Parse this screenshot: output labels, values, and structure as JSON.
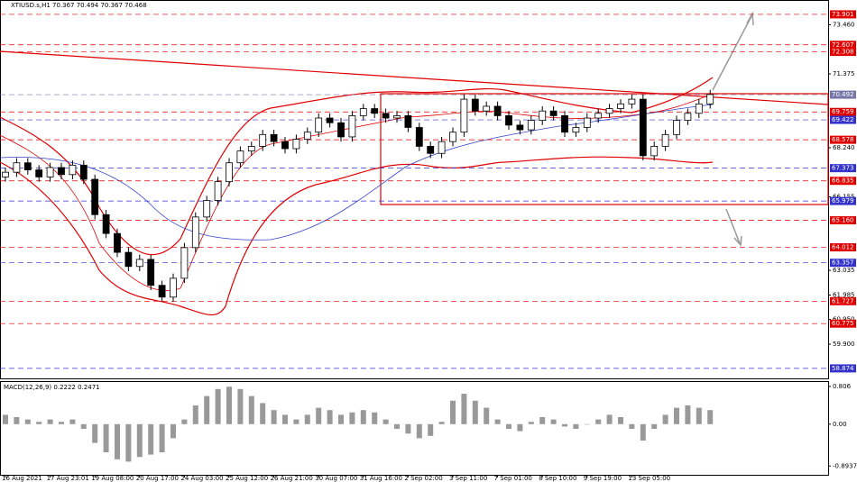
{
  "chart_data": {
    "type": "candlestick",
    "title": "XTIUSD.s,H1  70.367 70.494 70.367 70.468",
    "categories": [
      "16 Aug 2021",
      null,
      null,
      null,
      "17 Aug 23:01",
      null,
      null,
      null,
      "19 Aug 08:00",
      null,
      null,
      null,
      "20 Aug 17:00",
      null,
      null,
      null,
      "24 Aug 03:00",
      null,
      null,
      null,
      "25 Aug 12:00",
      null,
      null,
      null,
      "26 Aug 21:00",
      null,
      null,
      null,
      "30 Aug 07:00",
      null,
      null,
      null,
      "31 Aug 16:00",
      null,
      null,
      null,
      "2 Sep 02:00",
      null,
      null,
      null,
      "3 Sep 11:00",
      null,
      null,
      null,
      "7 Sep 01:00",
      null,
      null,
      null,
      "8 Sep 10:00",
      null,
      null,
      null,
      "9 Sep 19:00",
      null,
      null,
      null,
      "13 Sep 05:00",
      null,
      null,
      null,
      null,
      null,
      null,
      null
    ],
    "open": [
      67.0,
      67.2,
      67.6,
      67.3,
      67.0,
      67.4,
      67.1,
      67.5,
      66.9,
      65.4,
      64.6,
      63.8,
      63.2,
      63.5,
      62.4,
      61.9,
      62.7,
      64.0,
      65.3,
      66.0,
      66.8,
      67.6,
      68.1,
      68.3,
      68.8,
      68.5,
      68.2,
      68.6,
      68.9,
      69.5,
      69.3,
      68.7,
      69.6,
      69.9,
      69.7,
      69.5,
      69.6,
      69.1,
      68.3,
      68.0,
      68.5,
      68.9,
      70.3,
      69.8,
      70.0,
      69.6,
      69.2,
      69.0,
      69.4,
      69.8,
      69.6,
      68.9,
      69.1,
      69.5,
      69.7,
      69.9,
      70.1,
      70.3,
      67.9,
      68.3,
      68.8,
      69.4,
      69.7,
      70.1
    ],
    "high": [
      67.4,
      67.8,
      67.8,
      67.5,
      67.6,
      67.6,
      67.7,
      67.7,
      67.1,
      65.6,
      64.8,
      64.0,
      63.7,
      63.7,
      62.6,
      62.9,
      64.2,
      65.5,
      66.2,
      67.0,
      67.8,
      68.3,
      68.5,
      69.0,
      69.0,
      68.7,
      68.8,
      69.1,
      69.7,
      69.7,
      69.5,
      69.8,
      70.1,
      70.1,
      69.9,
      69.8,
      69.8,
      69.3,
      68.5,
      68.7,
      69.1,
      70.5,
      70.5,
      70.2,
      70.2,
      69.8,
      69.4,
      69.6,
      70.0,
      70.0,
      69.8,
      69.3,
      69.7,
      69.9,
      70.1,
      70.3,
      70.5,
      70.5,
      68.5,
      69.0,
      69.6,
      69.9,
      70.3,
      70.7
    ],
    "low": [
      66.8,
      67.0,
      67.1,
      66.8,
      66.8,
      66.9,
      66.9,
      66.7,
      65.2,
      64.4,
      63.6,
      63.0,
      63.0,
      62.2,
      61.7,
      61.7,
      62.5,
      63.8,
      65.1,
      65.8,
      66.6,
      67.4,
      67.9,
      68.1,
      68.3,
      68.0,
      68.0,
      68.4,
      68.7,
      69.1,
      68.5,
      68.5,
      69.4,
      69.5,
      69.3,
      69.3,
      68.9,
      68.1,
      67.8,
      67.8,
      68.3,
      68.7,
      69.6,
      69.6,
      69.4,
      69.0,
      68.8,
      68.8,
      69.2,
      69.4,
      68.7,
      68.7,
      68.9,
      69.3,
      69.5,
      69.7,
      69.9,
      67.7,
      67.7,
      68.1,
      68.6,
      69.2,
      69.5,
      69.9
    ],
    "close": [
      67.2,
      67.6,
      67.3,
      67.0,
      67.4,
      67.1,
      67.5,
      66.9,
      65.4,
      64.6,
      63.8,
      63.2,
      63.5,
      62.4,
      61.9,
      62.7,
      64.0,
      65.3,
      66.0,
      66.8,
      67.6,
      68.1,
      68.3,
      68.8,
      68.5,
      68.2,
      68.6,
      68.9,
      69.5,
      69.3,
      68.7,
      69.6,
      69.9,
      69.7,
      69.5,
      69.6,
      69.1,
      68.3,
      68.0,
      68.5,
      68.9,
      70.3,
      69.8,
      70.0,
      69.6,
      69.2,
      69.0,
      69.4,
      69.8,
      69.6,
      68.9,
      69.1,
      69.5,
      69.7,
      69.9,
      70.1,
      70.3,
      67.9,
      68.3,
      68.8,
      69.4,
      69.7,
      70.1,
      70.5
    ],
    "ylim": [
      58.45,
      74.51
    ],
    "yticks": [
      {
        "value": 73.46,
        "label": "73.460"
      },
      {
        "value": 71.375,
        "label": "71.375"
      },
      {
        "value": 68.24,
        "label": "68.240"
      },
      {
        "value": 66.155,
        "label": "66.155"
      },
      {
        "value": 63.035,
        "label": "63.035"
      },
      {
        "value": 61.985,
        "label": "61.985"
      },
      {
        "value": 60.95,
        "label": "60.950"
      },
      {
        "value": 59.9,
        "label": "59.900"
      }
    ],
    "levels": [
      {
        "value": 73.901,
        "label": "73.901",
        "color": "#e00000"
      },
      {
        "value": 72.607,
        "label": "72.607",
        "color": "#e00000"
      },
      {
        "value": 72.308,
        "label": "72.308",
        "color": "#e00000"
      },
      {
        "value": 70.492,
        "label": "70.492",
        "color": "#7777aa"
      },
      {
        "value": 69.759,
        "label": "69.759",
        "color": "#e00000"
      },
      {
        "value": 69.422,
        "label": "69.422",
        "color": "#3333cc"
      },
      {
        "value": 68.578,
        "label": "68.578",
        "color": "#e00000"
      },
      {
        "value": 67.373,
        "label": "67.373",
        "color": "#3333cc"
      },
      {
        "value": 66.835,
        "label": "66.835",
        "color": "#e00000"
      },
      {
        "value": 65.979,
        "label": "65.979",
        "color": "#3333cc"
      },
      {
        "value": 65.16,
        "label": "65.160",
        "color": "#e00000"
      },
      {
        "value": 64.012,
        "label": "64.012",
        "color": "#e00000"
      },
      {
        "value": 63.357,
        "label": "63.357",
        "color": "#3333cc"
      },
      {
        "value": 61.727,
        "label": "61.727",
        "color": "#e00000"
      },
      {
        "value": 60.775,
        "label": "60.775",
        "color": "#e00000"
      },
      {
        "value": 58.874,
        "label": "58.874",
        "color": "#3333cc"
      }
    ],
    "macd": {
      "title": "MACD(12,26,9) 0.2222 0.2471",
      "color": "#999999",
      "values": [
        0.2,
        0.15,
        0.1,
        0.05,
        0.1,
        0.05,
        0.1,
        -0.1,
        -0.4,
        -0.6,
        -0.75,
        -0.8,
        -0.7,
        -0.65,
        -0.6,
        -0.3,
        0.1,
        0.4,
        0.6,
        0.75,
        0.8,
        0.75,
        0.6,
        0.45,
        0.3,
        0.2,
        0.1,
        0.2,
        0.35,
        0.3,
        0.2,
        0.25,
        0.3,
        0.25,
        0.1,
        -0.1,
        -0.2,
        -0.3,
        -0.25,
        0.05,
        0.5,
        0.65,
        0.5,
        0.35,
        0.1,
        -0.1,
        -0.15,
        0.05,
        0.15,
        0.1,
        -0.05,
        -0.1,
        0.0,
        0.1,
        0.2,
        0.15,
        -0.1,
        -0.35,
        -0.1,
        0.2,
        0.35,
        0.4,
        0.35,
        0.3
      ],
      "ylim": [
        -1.1,
        0.9
      ],
      "yticks": [
        {
          "value": 0.806,
          "label": "0.806"
        },
        {
          "value": 0,
          "label": "0.00"
        },
        -0.8937
      ]
    }
  }
}
